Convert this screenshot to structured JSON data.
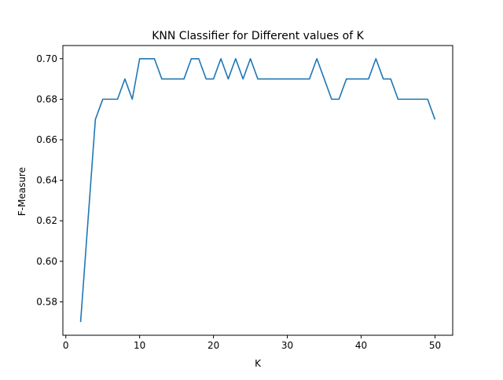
{
  "chart_data": {
    "type": "line",
    "title": "KNN Classifier for Different values of K",
    "xlabel": "K",
    "ylabel": "F-Measure",
    "xlim": [
      -0.4,
      52.4
    ],
    "ylim": [
      0.5635,
      0.7065
    ],
    "xticks": [
      0,
      10,
      20,
      30,
      40,
      50
    ],
    "yticks": [
      0.58,
      0.6,
      0.62,
      0.64,
      0.66,
      0.68,
      0.7
    ],
    "grid": false,
    "series": [
      {
        "color": "#1f77b4",
        "x": [
          2,
          3,
          4,
          5,
          6,
          7,
          8,
          9,
          10,
          11,
          12,
          13,
          14,
          15,
          16,
          17,
          18,
          19,
          20,
          21,
          22,
          23,
          24,
          25,
          26,
          27,
          28,
          29,
          30,
          31,
          32,
          33,
          34,
          35,
          36,
          37,
          38,
          39,
          40,
          41,
          42,
          43,
          44,
          45,
          46,
          47,
          48,
          49,
          50
        ],
        "values": [
          0.57,
          0.62,
          0.67,
          0.68,
          0.68,
          0.68,
          0.69,
          0.68,
          0.7,
          0.7,
          0.7,
          0.69,
          0.69,
          0.69,
          0.69,
          0.7,
          0.7,
          0.69,
          0.69,
          0.7,
          0.69,
          0.7,
          0.69,
          0.7,
          0.69,
          0.69,
          0.69,
          0.69,
          0.69,
          0.69,
          0.69,
          0.69,
          0.7,
          0.69,
          0.68,
          0.68,
          0.69,
          0.69,
          0.69,
          0.69,
          0.7,
          0.69,
          0.69,
          0.68,
          0.68,
          0.68,
          0.68,
          0.68,
          0.67
        ]
      }
    ]
  }
}
